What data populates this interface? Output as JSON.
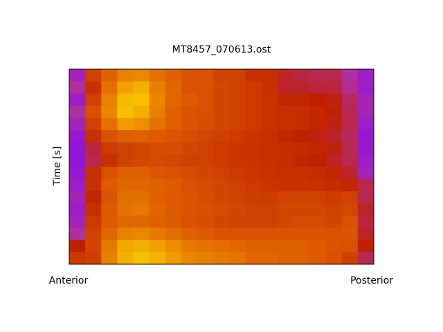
{
  "chart_data": {
    "type": "heatmap",
    "title": "MT8457_070613.ost",
    "ylabel": "Time [s]",
    "x_start_label": "Anterior",
    "x_end_label": "Posterior",
    "zlim": [
      0,
      1
    ],
    "colormap": [
      "#8000ff",
      "#b030a0",
      "#c02000",
      "#e06000",
      "#f0a000",
      "#ffe000"
    ],
    "values": [
      [
        0.15,
        0.5,
        0.6,
        0.7,
        0.72,
        0.65,
        0.6,
        0.55,
        0.55,
        0.5,
        0.5,
        0.45,
        0.45,
        0.35,
        0.32,
        0.3,
        0.3,
        0.2,
        0.12
      ],
      [
        0.2,
        0.45,
        0.65,
        0.8,
        0.85,
        0.7,
        0.62,
        0.55,
        0.55,
        0.52,
        0.5,
        0.48,
        0.45,
        0.35,
        0.35,
        0.33,
        0.32,
        0.22,
        0.12
      ],
      [
        0.12,
        0.5,
        0.7,
        0.88,
        0.9,
        0.72,
        0.62,
        0.58,
        0.55,
        0.52,
        0.5,
        0.48,
        0.46,
        0.42,
        0.42,
        0.4,
        0.38,
        0.28,
        0.15
      ],
      [
        0.2,
        0.55,
        0.72,
        0.9,
        0.85,
        0.7,
        0.6,
        0.56,
        0.55,
        0.52,
        0.5,
        0.48,
        0.46,
        0.45,
        0.44,
        0.42,
        0.4,
        0.3,
        0.15
      ],
      [
        0.15,
        0.5,
        0.65,
        0.78,
        0.75,
        0.66,
        0.6,
        0.56,
        0.54,
        0.52,
        0.5,
        0.48,
        0.46,
        0.45,
        0.44,
        0.42,
        0.38,
        0.3,
        0.12
      ],
      [
        0.1,
        0.45,
        0.55,
        0.6,
        0.6,
        0.58,
        0.56,
        0.54,
        0.52,
        0.5,
        0.48,
        0.47,
        0.45,
        0.42,
        0.4,
        0.38,
        0.35,
        0.28,
        0.1
      ],
      [
        0.08,
        0.32,
        0.48,
        0.5,
        0.52,
        0.54,
        0.54,
        0.52,
        0.5,
        0.48,
        0.47,
        0.46,
        0.45,
        0.44,
        0.43,
        0.42,
        0.38,
        0.3,
        0.1
      ],
      [
        0.08,
        0.3,
        0.45,
        0.5,
        0.52,
        0.53,
        0.52,
        0.5,
        0.5,
        0.48,
        0.47,
        0.46,
        0.45,
        0.44,
        0.42,
        0.4,
        0.35,
        0.3,
        0.12
      ],
      [
        0.1,
        0.45,
        0.55,
        0.6,
        0.6,
        0.57,
        0.55,
        0.53,
        0.52,
        0.5,
        0.48,
        0.47,
        0.46,
        0.45,
        0.45,
        0.44,
        0.42,
        0.35,
        0.15
      ],
      [
        0.12,
        0.45,
        0.58,
        0.62,
        0.62,
        0.6,
        0.58,
        0.55,
        0.53,
        0.52,
        0.5,
        0.48,
        0.47,
        0.46,
        0.46,
        0.45,
        0.44,
        0.42,
        0.3
      ],
      [
        0.15,
        0.42,
        0.56,
        0.65,
        0.65,
        0.6,
        0.58,
        0.56,
        0.54,
        0.52,
        0.5,
        0.49,
        0.48,
        0.5,
        0.5,
        0.5,
        0.48,
        0.5,
        0.3
      ],
      [
        0.12,
        0.45,
        0.58,
        0.66,
        0.68,
        0.62,
        0.58,
        0.56,
        0.55,
        0.53,
        0.52,
        0.5,
        0.5,
        0.52,
        0.52,
        0.52,
        0.5,
        0.52,
        0.35
      ],
      [
        0.15,
        0.48,
        0.58,
        0.62,
        0.62,
        0.6,
        0.58,
        0.55,
        0.54,
        0.52,
        0.5,
        0.5,
        0.5,
        0.52,
        0.53,
        0.53,
        0.52,
        0.55,
        0.32
      ],
      [
        0.2,
        0.5,
        0.62,
        0.7,
        0.72,
        0.68,
        0.64,
        0.6,
        0.58,
        0.56,
        0.55,
        0.55,
        0.55,
        0.56,
        0.56,
        0.56,
        0.55,
        0.56,
        0.35
      ],
      [
        0.4,
        0.52,
        0.68,
        0.82,
        0.85,
        0.8,
        0.74,
        0.68,
        0.66,
        0.64,
        0.62,
        0.6,
        0.6,
        0.6,
        0.6,
        0.58,
        0.56,
        0.55,
        0.4
      ],
      [
        0.48,
        0.5,
        0.7,
        0.85,
        0.9,
        0.86,
        0.78,
        0.72,
        0.7,
        0.68,
        0.66,
        0.62,
        0.62,
        0.6,
        0.6,
        0.58,
        0.55,
        0.5,
        0.3
      ]
    ]
  }
}
